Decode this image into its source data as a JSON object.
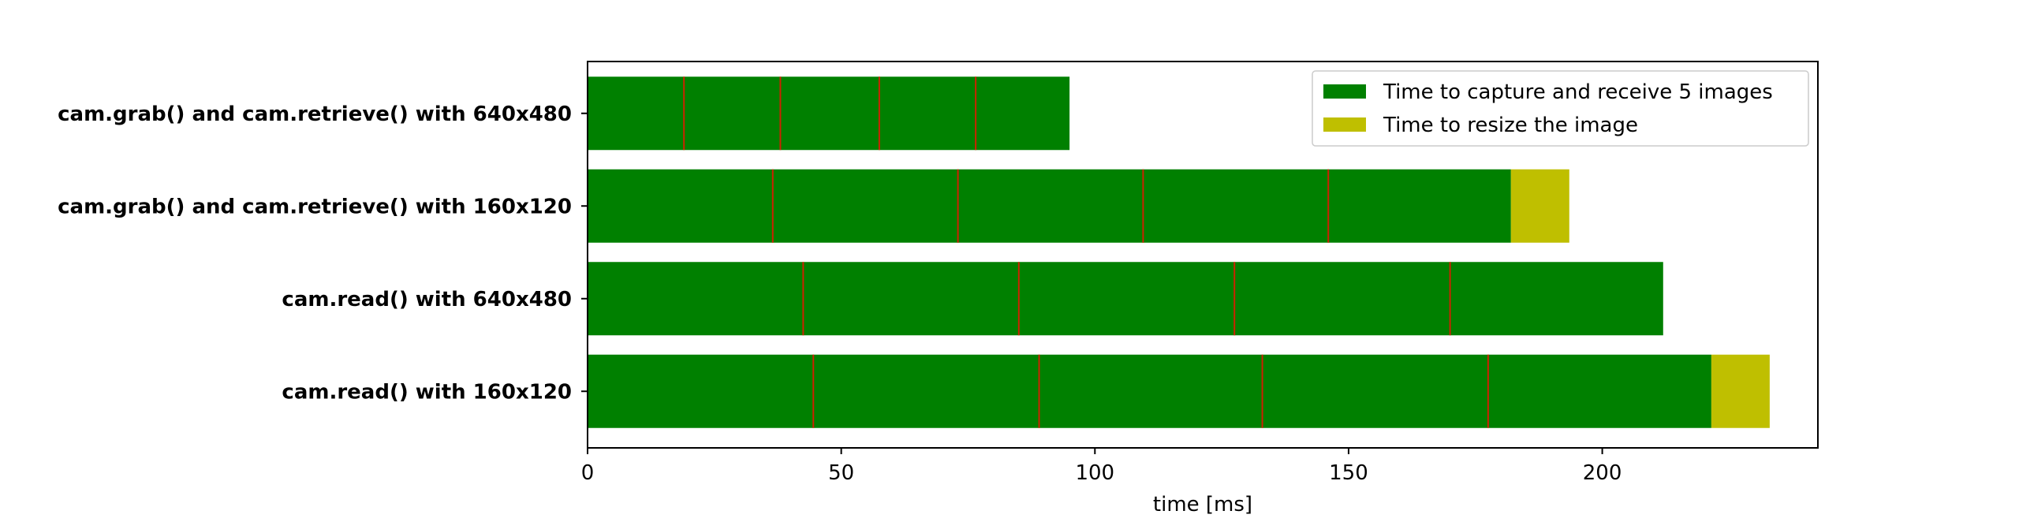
{
  "chart_data": {
    "type": "bar",
    "orientation": "horizontal",
    "stacked": true,
    "title": "",
    "xlabel": "time [ms]",
    "ylabel": "",
    "xlim": [
      0,
      242.5
    ],
    "xticks": [
      0,
      50,
      100,
      150,
      200
    ],
    "grid": false,
    "legend_position": "top-right",
    "categories": [
      "cam.grab() and cam.retrieve() with 640x480",
      "cam.grab() and cam.retrieve() with 160x120",
      "cam.read() with 640x480",
      "cam.read() with 160x120"
    ],
    "series": [
      {
        "name": "Time to capture and receive 5 images",
        "color": "#008000",
        "values": [
          95,
          182,
          212,
          221.5
        ]
      },
      {
        "name": "Time to resize the image",
        "color": "#bfbf00",
        "values": [
          0,
          11.5,
          0,
          11.5
        ]
      }
    ],
    "frame_markers": {
      "color": "#cc2200",
      "values": [
        [
          19,
          38,
          57.5,
          76.5
        ],
        [
          36.5,
          73,
          109.5,
          146
        ],
        [
          42.5,
          85,
          127.5,
          170
        ],
        [
          44.5,
          89,
          133,
          177.5
        ]
      ]
    }
  }
}
